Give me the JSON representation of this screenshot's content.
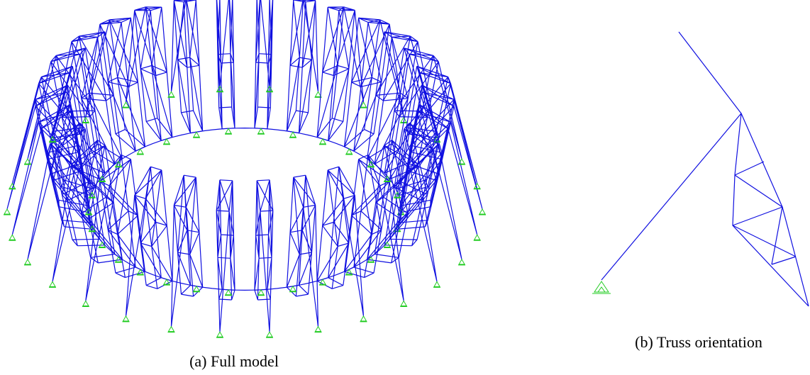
{
  "figure": {
    "captions": [
      "(a) Full model",
      "(b) Truss orientation"
    ]
  }
}
